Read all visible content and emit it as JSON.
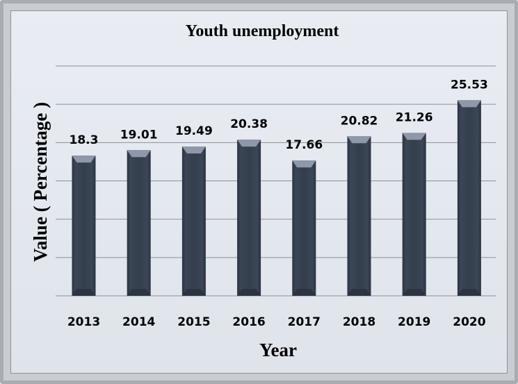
{
  "chart_data": {
    "type": "bar",
    "title": "Youth unemployment",
    "xlabel": "Year",
    "ylabel": "Value ( Percentage )",
    "categories": [
      "2013",
      "2014",
      "2015",
      "2016",
      "2017",
      "2018",
      "2019",
      "2020"
    ],
    "values": [
      18.3,
      19.01,
      19.49,
      20.38,
      17.66,
      20.82,
      21.26,
      25.53
    ],
    "data_labels": [
      "18.3",
      "19.01",
      "19.49",
      "20.38",
      "17.66",
      "20.82",
      "21.26",
      "25.53"
    ],
    "ylim": [
      0,
      30
    ],
    "grid": true,
    "colors": {
      "bar": "#343e4c",
      "bar_top": "#8e98a8",
      "grid": "#8c9097",
      "background": "#e4e8ee"
    }
  }
}
